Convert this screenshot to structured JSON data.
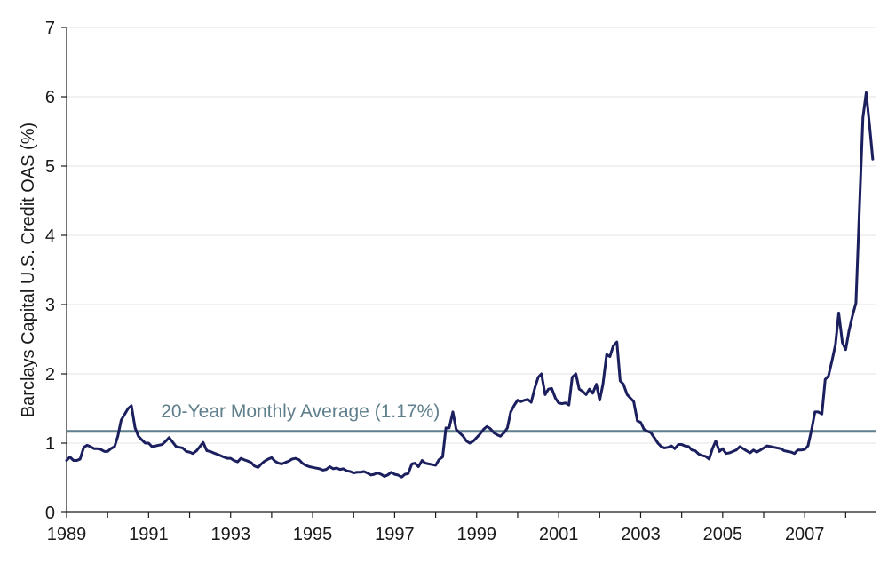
{
  "chart_data": {
    "type": "line",
    "title": "",
    "xlabel": "",
    "ylabel": "Barclays Capital U.S. Credit OAS (%)",
    "ylim": [
      0,
      7
    ],
    "xlim": [
      1989,
      2008.75
    ],
    "yticks": [
      0,
      1,
      2,
      3,
      4,
      5,
      6,
      7
    ],
    "xticks": [
      1989,
      1991,
      1993,
      1995,
      1997,
      1999,
      2001,
      2003,
      2005,
      2007
    ],
    "xtick_labels": [
      "1989",
      "1991",
      "1993",
      "1995",
      "1997",
      "1999",
      "2001",
      "2003",
      "2005",
      "2007"
    ],
    "ytick_labels": [
      "0",
      "1",
      "2",
      "3",
      "4",
      "5",
      "6",
      "7"
    ],
    "grid": "horizontal",
    "series": [
      {
        "name": "Barclays Capital U.S. Credit OAS",
        "color": "#1b1f5e",
        "points": [
          [
            1989.0,
            0.75
          ],
          [
            1989.08,
            0.8
          ],
          [
            1989.17,
            0.75
          ],
          [
            1989.25,
            0.75
          ],
          [
            1989.33,
            0.77
          ],
          [
            1989.42,
            0.94
          ],
          [
            1989.5,
            0.97
          ],
          [
            1989.58,
            0.95
          ],
          [
            1989.67,
            0.92
          ],
          [
            1989.75,
            0.92
          ],
          [
            1989.83,
            0.91
          ],
          [
            1989.92,
            0.88
          ],
          [
            1990.0,
            0.88
          ],
          [
            1990.08,
            0.92
          ],
          [
            1990.17,
            0.95
          ],
          [
            1990.25,
            1.1
          ],
          [
            1990.33,
            1.33
          ],
          [
            1990.42,
            1.42
          ],
          [
            1990.5,
            1.5
          ],
          [
            1990.58,
            1.54
          ],
          [
            1990.67,
            1.22
          ],
          [
            1990.75,
            1.1
          ],
          [
            1990.83,
            1.05
          ],
          [
            1990.92,
            1.0
          ],
          [
            1991.0,
            1.0
          ],
          [
            1991.08,
            0.95
          ],
          [
            1991.17,
            0.96
          ],
          [
            1991.25,
            0.97
          ],
          [
            1991.33,
            0.98
          ],
          [
            1991.42,
            1.03
          ],
          [
            1991.5,
            1.08
          ],
          [
            1991.58,
            1.02
          ],
          [
            1991.67,
            0.95
          ],
          [
            1991.75,
            0.94
          ],
          [
            1991.83,
            0.93
          ],
          [
            1991.92,
            0.88
          ],
          [
            1992.0,
            0.87
          ],
          [
            1992.08,
            0.85
          ],
          [
            1992.17,
            0.89
          ],
          [
            1992.25,
            0.95
          ],
          [
            1992.33,
            1.01
          ],
          [
            1992.42,
            0.89
          ],
          [
            1992.5,
            0.88
          ],
          [
            1992.58,
            0.86
          ],
          [
            1992.67,
            0.84
          ],
          [
            1992.75,
            0.82
          ],
          [
            1992.83,
            0.8
          ],
          [
            1992.92,
            0.78
          ],
          [
            1993.0,
            0.78
          ],
          [
            1993.08,
            0.75
          ],
          [
            1993.17,
            0.73
          ],
          [
            1993.25,
            0.78
          ],
          [
            1993.33,
            0.76
          ],
          [
            1993.42,
            0.74
          ],
          [
            1993.5,
            0.72
          ],
          [
            1993.58,
            0.67
          ],
          [
            1993.67,
            0.65
          ],
          [
            1993.75,
            0.7
          ],
          [
            1993.83,
            0.74
          ],
          [
            1993.92,
            0.77
          ],
          [
            1994.0,
            0.79
          ],
          [
            1994.08,
            0.74
          ],
          [
            1994.17,
            0.71
          ],
          [
            1994.25,
            0.7
          ],
          [
            1994.33,
            0.72
          ],
          [
            1994.42,
            0.74
          ],
          [
            1994.5,
            0.77
          ],
          [
            1994.58,
            0.78
          ],
          [
            1994.67,
            0.76
          ],
          [
            1994.75,
            0.71
          ],
          [
            1994.83,
            0.68
          ],
          [
            1994.92,
            0.66
          ],
          [
            1995.0,
            0.65
          ],
          [
            1995.08,
            0.64
          ],
          [
            1995.17,
            0.63
          ],
          [
            1995.25,
            0.61
          ],
          [
            1995.33,
            0.62
          ],
          [
            1995.42,
            0.66
          ],
          [
            1995.5,
            0.63
          ],
          [
            1995.58,
            0.64
          ],
          [
            1995.67,
            0.62
          ],
          [
            1995.75,
            0.63
          ],
          [
            1995.83,
            0.6
          ],
          [
            1995.92,
            0.59
          ],
          [
            1996.0,
            0.57
          ],
          [
            1996.08,
            0.58
          ],
          [
            1996.17,
            0.58
          ],
          [
            1996.25,
            0.59
          ],
          [
            1996.33,
            0.57
          ],
          [
            1996.42,
            0.54
          ],
          [
            1996.5,
            0.55
          ],
          [
            1996.58,
            0.57
          ],
          [
            1996.67,
            0.55
          ],
          [
            1996.75,
            0.52
          ],
          [
            1996.83,
            0.54
          ],
          [
            1996.92,
            0.58
          ],
          [
            1997.0,
            0.55
          ],
          [
            1997.08,
            0.54
          ],
          [
            1997.17,
            0.51
          ],
          [
            1997.25,
            0.55
          ],
          [
            1997.33,
            0.56
          ],
          [
            1997.42,
            0.7
          ],
          [
            1997.5,
            0.71
          ],
          [
            1997.58,
            0.66
          ],
          [
            1997.67,
            0.75
          ],
          [
            1997.75,
            0.71
          ],
          [
            1997.83,
            0.7
          ],
          [
            1997.92,
            0.69
          ],
          [
            1998.0,
            0.68
          ],
          [
            1998.08,
            0.76
          ],
          [
            1998.17,
            0.8
          ],
          [
            1998.25,
            1.22
          ],
          [
            1998.33,
            1.22
          ],
          [
            1998.42,
            1.45
          ],
          [
            1998.5,
            1.2
          ],
          [
            1998.58,
            1.15
          ],
          [
            1998.67,
            1.1
          ],
          [
            1998.75,
            1.03
          ],
          [
            1998.83,
            1.0
          ],
          [
            1998.92,
            1.03
          ],
          [
            1999.0,
            1.08
          ],
          [
            1999.08,
            1.13
          ],
          [
            1999.17,
            1.2
          ],
          [
            1999.25,
            1.24
          ],
          [
            1999.33,
            1.21
          ],
          [
            1999.42,
            1.15
          ],
          [
            1999.5,
            1.12
          ],
          [
            1999.58,
            1.1
          ],
          [
            1999.67,
            1.15
          ],
          [
            1999.75,
            1.22
          ],
          [
            1999.83,
            1.45
          ],
          [
            1999.92,
            1.55
          ],
          [
            2000.0,
            1.62
          ],
          [
            2000.08,
            1.6
          ],
          [
            2000.17,
            1.62
          ],
          [
            2000.25,
            1.63
          ],
          [
            2000.33,
            1.59
          ],
          [
            2000.42,
            1.8
          ],
          [
            2000.5,
            1.95
          ],
          [
            2000.58,
            2.0
          ],
          [
            2000.67,
            1.7
          ],
          [
            2000.75,
            1.78
          ],
          [
            2000.83,
            1.79
          ],
          [
            2000.92,
            1.65
          ],
          [
            2001.0,
            1.58
          ],
          [
            2001.08,
            1.57
          ],
          [
            2001.17,
            1.58
          ],
          [
            2001.25,
            1.55
          ],
          [
            2001.33,
            1.95
          ],
          [
            2001.42,
            2.0
          ],
          [
            2001.5,
            1.78
          ],
          [
            2001.58,
            1.75
          ],
          [
            2001.67,
            1.7
          ],
          [
            2001.75,
            1.78
          ],
          [
            2001.83,
            1.72
          ],
          [
            2001.92,
            1.85
          ],
          [
            2002.0,
            1.62
          ],
          [
            2002.08,
            1.85
          ],
          [
            2002.17,
            2.28
          ],
          [
            2002.25,
            2.25
          ],
          [
            2002.33,
            2.4
          ],
          [
            2002.42,
            2.46
          ],
          [
            2002.5,
            1.9
          ],
          [
            2002.58,
            1.85
          ],
          [
            2002.67,
            1.7
          ],
          [
            2002.75,
            1.65
          ],
          [
            2002.83,
            1.6
          ],
          [
            2002.92,
            1.32
          ],
          [
            2003.0,
            1.3
          ],
          [
            2003.08,
            1.2
          ],
          [
            2003.17,
            1.17
          ],
          [
            2003.25,
            1.15
          ],
          [
            2003.33,
            1.08
          ],
          [
            2003.42,
            1.0
          ],
          [
            2003.5,
            0.95
          ],
          [
            2003.58,
            0.93
          ],
          [
            2003.67,
            0.94
          ],
          [
            2003.75,
            0.96
          ],
          [
            2003.83,
            0.92
          ],
          [
            2003.92,
            0.98
          ],
          [
            2004.0,
            0.98
          ],
          [
            2004.08,
            0.96
          ],
          [
            2004.17,
            0.95
          ],
          [
            2004.25,
            0.9
          ],
          [
            2004.33,
            0.89
          ],
          [
            2004.42,
            0.84
          ],
          [
            2004.5,
            0.82
          ],
          [
            2004.58,
            0.81
          ],
          [
            2004.67,
            0.77
          ],
          [
            2004.75,
            0.92
          ],
          [
            2004.83,
            1.03
          ],
          [
            2004.92,
            0.88
          ],
          [
            2005.0,
            0.92
          ],
          [
            2005.08,
            0.85
          ],
          [
            2005.17,
            0.86
          ],
          [
            2005.25,
            0.88
          ],
          [
            2005.33,
            0.9
          ],
          [
            2005.42,
            0.95
          ],
          [
            2005.5,
            0.92
          ],
          [
            2005.58,
            0.89
          ],
          [
            2005.67,
            0.86
          ],
          [
            2005.75,
            0.9
          ],
          [
            2005.83,
            0.87
          ],
          [
            2005.92,
            0.9
          ],
          [
            2006.0,
            0.93
          ],
          [
            2006.08,
            0.96
          ],
          [
            2006.17,
            0.95
          ],
          [
            2006.25,
            0.94
          ],
          [
            2006.33,
            0.93
          ],
          [
            2006.42,
            0.92
          ],
          [
            2006.5,
            0.89
          ],
          [
            2006.58,
            0.88
          ],
          [
            2006.67,
            0.87
          ],
          [
            2006.75,
            0.85
          ],
          [
            2006.83,
            0.9
          ],
          [
            2006.92,
            0.9
          ],
          [
            2007.0,
            0.91
          ],
          [
            2007.08,
            0.96
          ],
          [
            2007.17,
            1.2
          ],
          [
            2007.25,
            1.45
          ],
          [
            2007.33,
            1.45
          ],
          [
            2007.42,
            1.42
          ],
          [
            2007.5,
            1.92
          ],
          [
            2007.58,
            1.97
          ],
          [
            2007.67,
            2.2
          ],
          [
            2007.75,
            2.42
          ],
          [
            2007.83,
            2.88
          ],
          [
            2007.92,
            2.45
          ],
          [
            2008.0,
            2.35
          ],
          [
            2008.08,
            2.62
          ],
          [
            2008.17,
            2.85
          ],
          [
            2008.25,
            3.02
          ],
          [
            2008.33,
            4.3
          ],
          [
            2008.42,
            5.7
          ],
          [
            2008.5,
            6.06
          ],
          [
            2008.58,
            5.6
          ],
          [
            2008.66,
            5.1
          ]
        ]
      }
    ],
    "reference_lines": [
      {
        "name": "20-Year Monthly Average",
        "value": 1.17,
        "label": "20-Year Monthly Average (1.17%)",
        "color": "#5f7f8c"
      }
    ],
    "annotations": [
      {
        "text": "20-Year Monthly Average (1.17%)",
        "x": 1991.3,
        "y": 1.37
      }
    ]
  }
}
